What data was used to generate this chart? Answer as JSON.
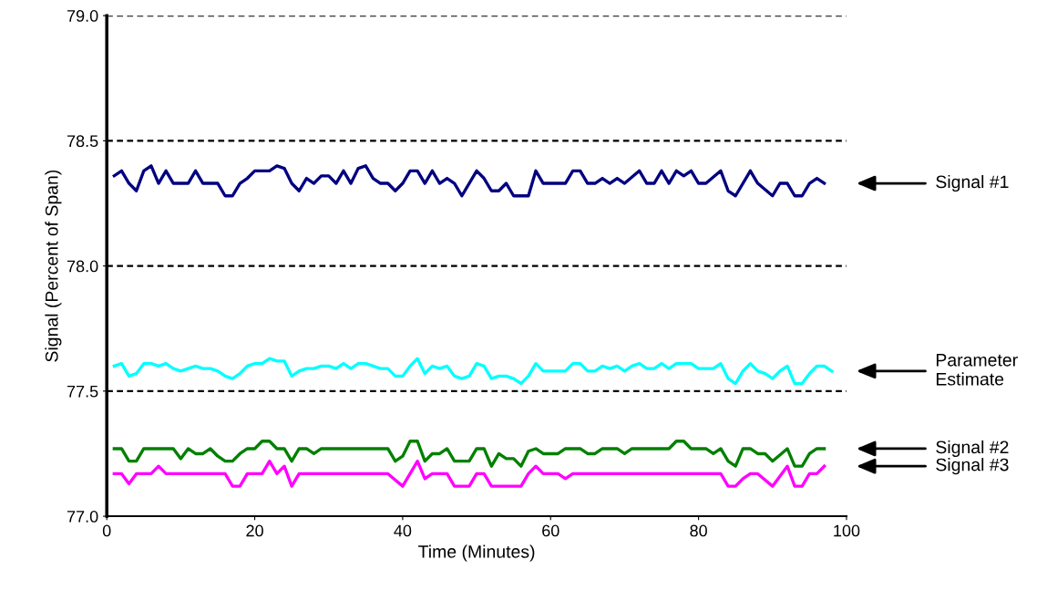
{
  "chart_data": {
    "type": "line",
    "xlabel": "Time (Minutes)",
    "ylabel": "Signal (Percent of Span)",
    "xlim": [
      0,
      100
    ],
    "xticks": [
      0,
      20,
      40,
      60,
      80,
      100
    ],
    "ylim": [
      77.0,
      79.0
    ],
    "yticks": [
      {
        "value": 77.0,
        "label": "77.0"
      },
      {
        "value": 77.5,
        "label": "77.5"
      },
      {
        "value": 78.0,
        "label": "78.0"
      },
      {
        "value": 78.5,
        "label": "78.5"
      },
      {
        "value": 79.0,
        "label": "79.0"
      }
    ],
    "grid": "y",
    "legend": false,
    "marker": "none",
    "line_style": "solid",
    "series": [
      {
        "name": "Signal #1",
        "color": "#000080",
        "x": [
          1,
          2,
          3,
          4,
          5,
          6,
          7,
          8,
          9,
          11,
          12,
          13,
          15,
          16,
          17,
          18,
          19,
          20,
          22,
          23,
          24,
          25,
          26,
          27,
          28,
          29,
          30,
          31,
          32,
          33,
          34,
          35,
          36,
          37,
          38,
          39,
          40,
          41,
          42,
          43,
          44,
          45,
          46,
          47,
          48,
          50,
          51,
          52,
          53,
          54,
          55,
          57,
          58,
          59,
          62,
          63,
          64,
          65,
          66,
          67,
          68,
          69,
          70,
          72,
          73,
          74,
          75,
          76,
          77,
          78,
          79,
          80,
          81,
          83,
          84,
          85,
          87,
          88,
          90,
          91,
          92,
          93,
          94,
          95,
          96,
          97
        ],
        "values": [
          78.36,
          78.38,
          78.33,
          78.3,
          78.38,
          78.4,
          78.33,
          78.38,
          78.33,
          78.33,
          78.38,
          78.33,
          78.33,
          78.28,
          78.28,
          78.33,
          78.35,
          78.38,
          78.38,
          78.4,
          78.39,
          78.33,
          78.3,
          78.35,
          78.33,
          78.36,
          78.36,
          78.33,
          78.38,
          78.33,
          78.39,
          78.4,
          78.35,
          78.33,
          78.33,
          78.3,
          78.33,
          78.38,
          78.38,
          78.33,
          78.38,
          78.33,
          78.35,
          78.33,
          78.28,
          78.38,
          78.35,
          78.3,
          78.3,
          78.33,
          78.28,
          78.28,
          78.38,
          78.33,
          78.33,
          78.38,
          78.38,
          78.33,
          78.33,
          78.35,
          78.33,
          78.35,
          78.33,
          78.38,
          78.33,
          78.33,
          78.38,
          78.33,
          78.38,
          78.36,
          78.38,
          78.33,
          78.33,
          78.38,
          78.3,
          78.28,
          78.38,
          78.33,
          78.28,
          78.33,
          78.33,
          78.28,
          78.28,
          78.33,
          78.35,
          78.33
        ]
      },
      {
        "name": "Parameter Estimate",
        "color": "#00ffff",
        "x": [
          1,
          2,
          3,
          4,
          5,
          6,
          7,
          8,
          9,
          10,
          11,
          12,
          13,
          14,
          15,
          16,
          17,
          18,
          19,
          20,
          21,
          22,
          23,
          24,
          25,
          26,
          27,
          28,
          29,
          30,
          31,
          32,
          33,
          34,
          35,
          36,
          37,
          38,
          39,
          40,
          41,
          42,
          43,
          44,
          45,
          46,
          47,
          48,
          49,
          50,
          51,
          52,
          53,
          54,
          55,
          56,
          57,
          58,
          59,
          62,
          63,
          64,
          65,
          66,
          67,
          68,
          69,
          70,
          71,
          72,
          73,
          74,
          75,
          76,
          77,
          79,
          80,
          82,
          83,
          84,
          85,
          86,
          87,
          88,
          89,
          90,
          91,
          92,
          93,
          94,
          95,
          96,
          97,
          98
        ],
        "values": [
          77.6,
          77.61,
          77.56,
          77.57,
          77.61,
          77.61,
          77.6,
          77.61,
          77.59,
          77.58,
          77.59,
          77.6,
          77.59,
          77.59,
          77.58,
          77.56,
          77.55,
          77.57,
          77.6,
          77.61,
          77.61,
          77.63,
          77.62,
          77.62,
          77.56,
          77.58,
          77.59,
          77.59,
          77.6,
          77.6,
          77.59,
          77.61,
          77.59,
          77.61,
          77.61,
          77.6,
          77.59,
          77.59,
          77.56,
          77.56,
          77.6,
          77.63,
          77.57,
          77.6,
          77.59,
          77.6,
          77.56,
          77.55,
          77.56,
          77.61,
          77.6,
          77.55,
          77.56,
          77.56,
          77.55,
          77.53,
          77.56,
          77.61,
          77.58,
          77.58,
          77.61,
          77.61,
          77.58,
          77.58,
          77.6,
          77.59,
          77.6,
          77.58,
          77.6,
          77.61,
          77.59,
          77.59,
          77.61,
          77.59,
          77.61,
          77.61,
          77.59,
          77.59,
          77.61,
          77.55,
          77.53,
          77.58,
          77.61,
          77.58,
          77.57,
          77.55,
          77.58,
          77.6,
          77.53,
          77.53,
          77.57,
          77.6,
          77.6,
          77.58
        ]
      },
      {
        "name": "Signal #2",
        "color": "#008000",
        "x": [
          1,
          2,
          3,
          4,
          5,
          9,
          10,
          11,
          12,
          13,
          14,
          15,
          16,
          17,
          18,
          19,
          20,
          21,
          22,
          23,
          24,
          25,
          26,
          27,
          28,
          29,
          38,
          39,
          40,
          41,
          42,
          43,
          44,
          45,
          46,
          47,
          49,
          50,
          51,
          52,
          53,
          54,
          55,
          56,
          57,
          58,
          59,
          61,
          62,
          64,
          65,
          66,
          67,
          69,
          70,
          71,
          76,
          77,
          78,
          79,
          81,
          82,
          83,
          84,
          85,
          86,
          87,
          88,
          89,
          90,
          92,
          93,
          94,
          95,
          96,
          97
        ],
        "values": [
          77.27,
          77.27,
          77.22,
          77.22,
          77.27,
          77.27,
          77.23,
          77.27,
          77.25,
          77.25,
          77.27,
          77.24,
          77.22,
          77.22,
          77.25,
          77.27,
          77.27,
          77.3,
          77.3,
          77.27,
          77.27,
          77.22,
          77.27,
          77.27,
          77.25,
          77.27,
          77.27,
          77.22,
          77.24,
          77.3,
          77.3,
          77.22,
          77.25,
          77.25,
          77.27,
          77.22,
          77.22,
          77.27,
          77.27,
          77.2,
          77.25,
          77.23,
          77.23,
          77.2,
          77.26,
          77.27,
          77.25,
          77.25,
          77.27,
          77.27,
          77.25,
          77.25,
          77.27,
          77.27,
          77.25,
          77.27,
          77.27,
          77.3,
          77.3,
          77.27,
          77.27,
          77.25,
          77.27,
          77.22,
          77.2,
          77.27,
          77.27,
          77.25,
          77.25,
          77.22,
          77.27,
          77.2,
          77.2,
          77.25,
          77.27,
          77.27
        ]
      },
      {
        "name": "Signal #3",
        "color": "#ff00ff",
        "x": [
          1,
          2,
          3,
          4,
          6,
          7,
          8,
          16,
          17,
          18,
          19,
          21,
          22,
          23,
          24,
          25,
          26,
          38,
          40,
          42,
          43,
          44,
          46,
          47,
          49,
          50,
          51,
          52,
          56,
          57,
          58,
          59,
          61,
          62,
          63,
          83,
          84,
          85,
          86,
          87,
          88,
          90,
          91,
          92,
          93,
          94,
          95,
          96,
          97
        ],
        "values": [
          77.17,
          77.17,
          77.13,
          77.17,
          77.17,
          77.2,
          77.17,
          77.17,
          77.12,
          77.12,
          77.17,
          77.17,
          77.22,
          77.17,
          77.2,
          77.12,
          77.17,
          77.17,
          77.12,
          77.22,
          77.15,
          77.17,
          77.17,
          77.12,
          77.12,
          77.17,
          77.17,
          77.12,
          77.12,
          77.17,
          77.2,
          77.17,
          77.17,
          77.15,
          77.17,
          77.17,
          77.12,
          77.12,
          77.15,
          77.17,
          77.17,
          77.12,
          77.16,
          77.2,
          77.12,
          77.12,
          77.17,
          77.17,
          77.2
        ]
      }
    ]
  }
}
